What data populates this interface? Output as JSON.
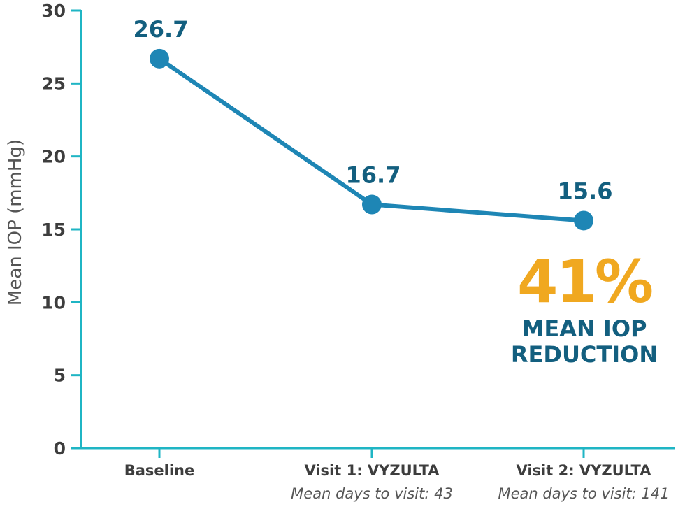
{
  "colors": {
    "axis": "#1fb5c4",
    "line": "#1e86b5",
    "marker": "#1e86b5",
    "data_label": "#135f7f",
    "callout_percent": "#f0a820",
    "callout_text": "#135f7f"
  },
  "chart_data": {
    "type": "line",
    "title": "",
    "xlabel": "",
    "ylabel": "Mean IOP (mmHg)",
    "ylim": [
      0,
      30
    ],
    "yticks": [
      "0",
      "5",
      "10",
      "15",
      "20",
      "25",
      "30"
    ],
    "categories": [
      "Baseline",
      "Visit 1: VYZULTA",
      "Visit 2: VYZULTA"
    ],
    "category_sublabels": [
      "",
      "Mean days to visit: 43",
      "Mean days to visit: 141"
    ],
    "series": [
      {
        "values": [
          26.7,
          16.7,
          15.6
        ],
        "labels": [
          "26.7",
          "16.7",
          "15.6"
        ]
      }
    ],
    "grid": false,
    "annotations": [
      {
        "percent": "41%",
        "line1": "MEAN IOP",
        "line2": "REDUCTION"
      }
    ]
  }
}
